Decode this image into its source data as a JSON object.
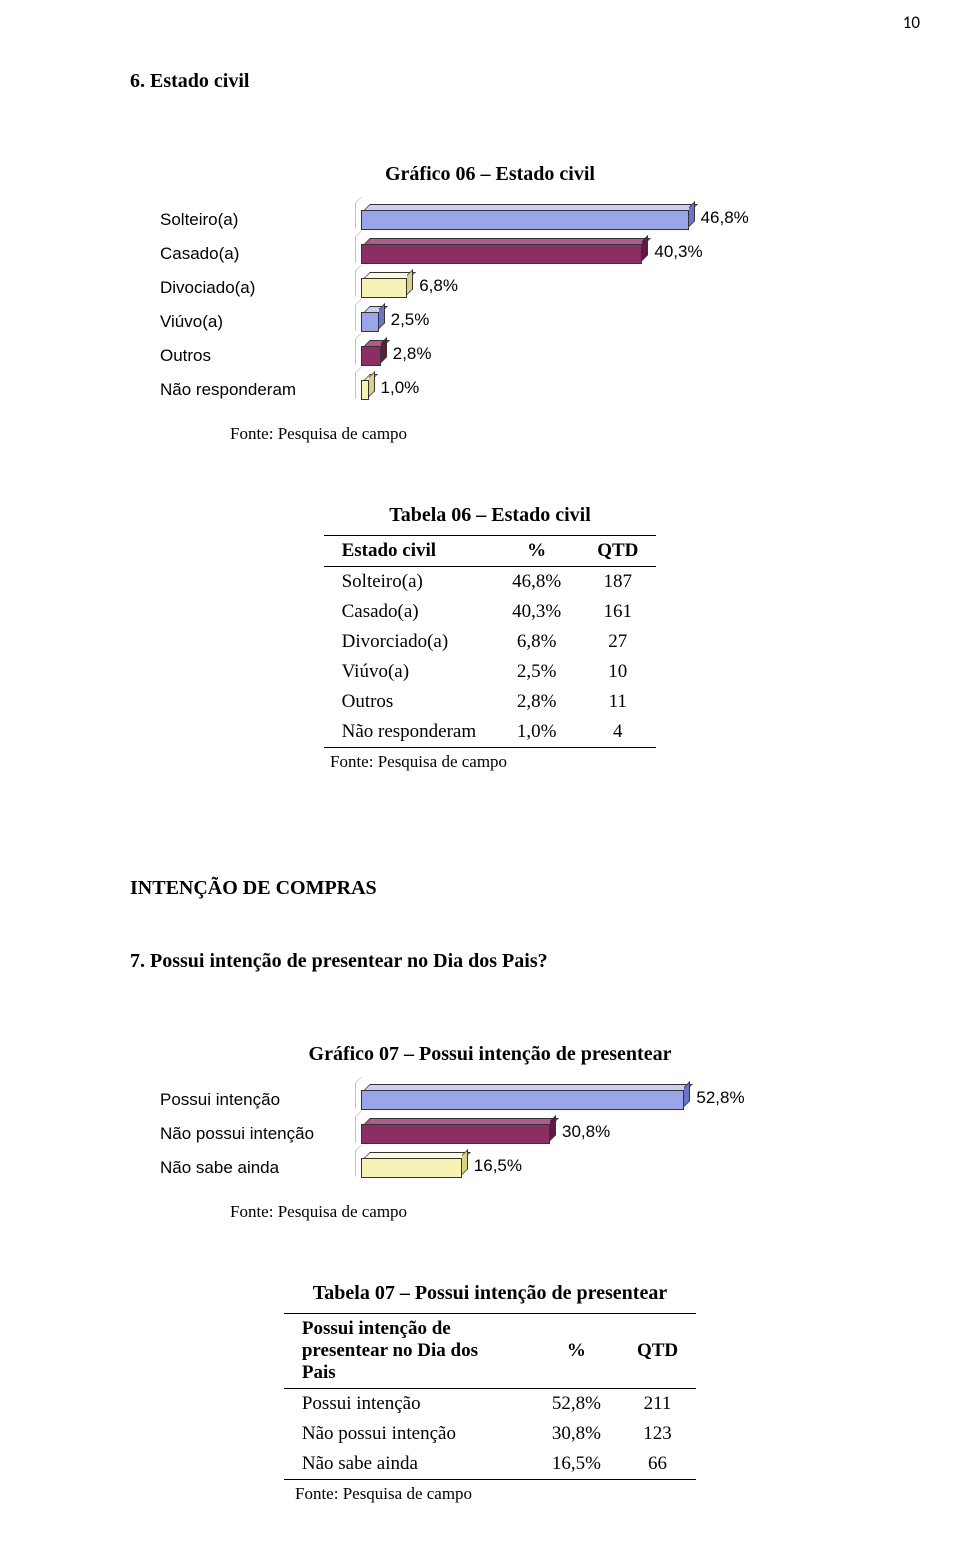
{
  "page_number": "10",
  "section6": {
    "title": "6. Estado civil",
    "chart_title": "Gráfico 06 – Estado civil",
    "bars": [
      {
        "label": "Solteiro(a)",
        "value_label": "46,8%",
        "width_pct": 78,
        "front": "#9ba6e8",
        "top": "#c9cff5",
        "side": "#6a75c9"
      },
      {
        "label": "Casado(a)",
        "value_label": "40,3%",
        "width_pct": 67,
        "front": "#8b2e63",
        "top": "#b05b8d",
        "side": "#5e1a42"
      },
      {
        "label": "Divociado(a)",
        "value_label": "6,8%",
        "width_pct": 11,
        "front": "#f8f3b4",
        "top": "#fcfad9",
        "side": "#d9d283"
      },
      {
        "label": "Viúvo(a)",
        "value_label": "2,5%",
        "width_pct": 4.2,
        "front": "#9ba6e8",
        "top": "#c9cff5",
        "side": "#6a75c9"
      },
      {
        "label": "Outros",
        "value_label": "2,8%",
        "width_pct": 4.7,
        "front": "#8b2e63",
        "top": "#b05b8d",
        "side": "#5e1a42"
      },
      {
        "label": "Não responderam",
        "value_label": "1,0%",
        "width_pct": 1.8,
        "front": "#f8f3b4",
        "top": "#fcfad9",
        "side": "#d9d283"
      }
    ],
    "source": "Fonte: Pesquisa de campo",
    "table_title": "Tabela 06 – Estado civil",
    "table_header": [
      "Estado civil",
      "%",
      "QTD"
    ],
    "table_rows": [
      [
        "Solteiro(a)",
        "46,8%",
        "187"
      ],
      [
        "Casado(a)",
        "40,3%",
        "161"
      ],
      [
        "Divorciado(a)",
        "6,8%",
        "27"
      ],
      [
        "Viúvo(a)",
        "2,5%",
        "10"
      ],
      [
        "Outros",
        "2,8%",
        "11"
      ],
      [
        "Não responderam",
        "1,0%",
        "4"
      ]
    ],
    "table_source": "Fonte: Pesquisa de campo"
  },
  "big_section_title": "INTENÇÃO DE COMPRAS",
  "section7": {
    "question": "7. Possui intenção de presentear no Dia dos Pais?",
    "chart_title": "Gráfico 07 – Possui intenção de presentear",
    "bars": [
      {
        "label": "Possui intenção",
        "value_label": "52,8%",
        "width_pct": 77,
        "front": "#9ba6e8",
        "top": "#c9cff5",
        "side": "#6a75c9"
      },
      {
        "label": "Não possui intenção",
        "value_label": "30,8%",
        "width_pct": 45,
        "front": "#8b2e63",
        "top": "#b05b8d",
        "side": "#5e1a42"
      },
      {
        "label": "Não sabe ainda",
        "value_label": "16,5%",
        "width_pct": 24,
        "front": "#f8f3b4",
        "top": "#fcfad9",
        "side": "#d9d283"
      }
    ],
    "source": "Fonte: Pesquisa de campo",
    "table_title": "Tabela 07 – Possui intenção de presentear",
    "table_header": [
      "Possui intenção de presentear no Dia dos Pais",
      "%",
      "QTD"
    ],
    "table_rows": [
      [
        "Possui intenção",
        "52,8%",
        "211"
      ],
      [
        "Não possui intenção",
        "30,8%",
        "123"
      ],
      [
        "Não sabe ainda",
        "16,5%",
        "66"
      ]
    ],
    "table_source": "Fonte: Pesquisa de campo"
  }
}
